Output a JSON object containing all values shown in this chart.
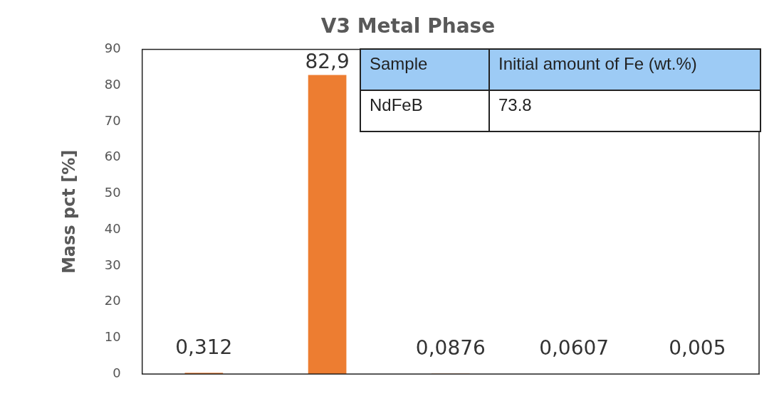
{
  "chart_data": {
    "type": "bar",
    "title": "V3 Metal Phase",
    "ylabel": "Mass pct [%]",
    "categories": [
      null,
      null,
      null,
      null,
      null
    ],
    "values": [
      0.312,
      82.9,
      0.0876,
      0.0607,
      0.005
    ],
    "value_labels": [
      "0,312",
      "82,9",
      "0,0876",
      "0,0607",
      "0,005"
    ],
    "color": "#ed7d31",
    "ylim": [
      0,
      90
    ],
    "yticks": [
      0,
      10,
      20,
      30,
      40,
      50,
      60,
      70,
      80,
      90
    ],
    "grid": false,
    "annotations": [
      "Sample",
      "Initial amount of Fe (wt.%)",
      "NdFeB",
      "73.8"
    ]
  }
}
